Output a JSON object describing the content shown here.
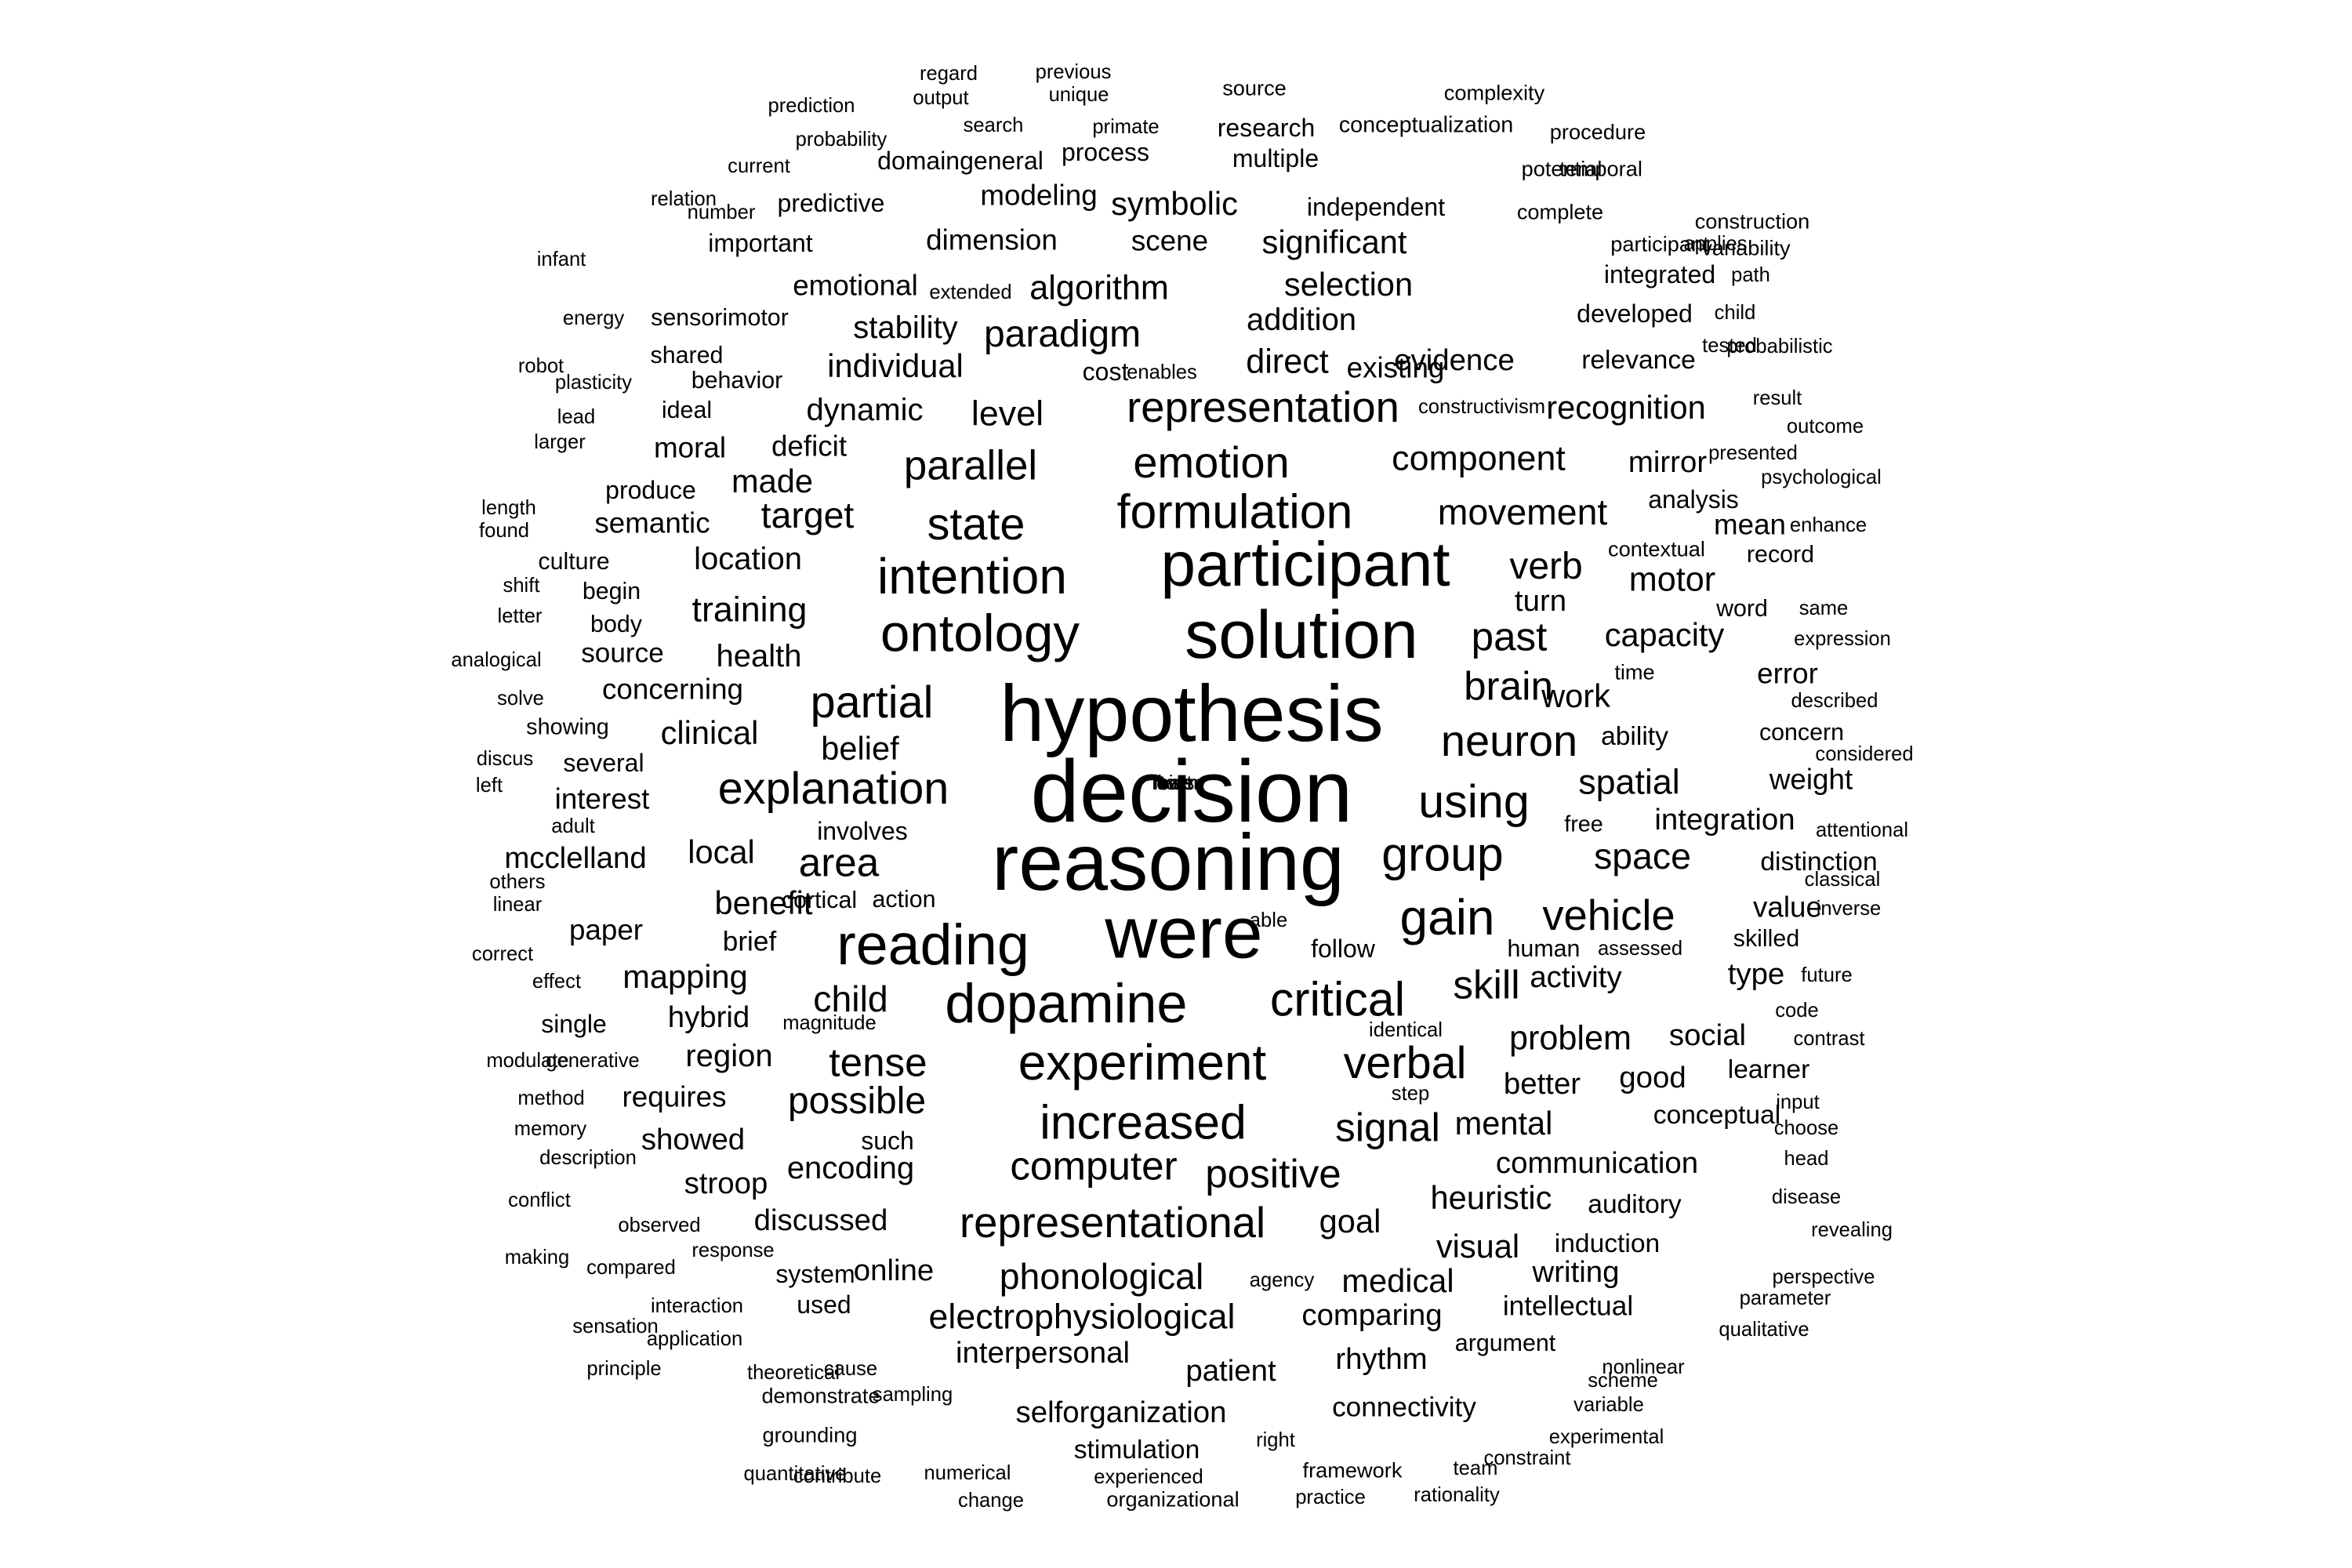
{
  "word_cloud": {
    "text_color": "#000000",
    "background": "#ffffff",
    "words": [
      {
        "text": "decision",
        "weight": 70
      },
      {
        "text": "hypothesis",
        "weight": 64
      },
      {
        "text": "reasoning",
        "weight": 64
      },
      {
        "text": "were",
        "weight": 58
      },
      {
        "text": "solution",
        "weight": 54
      },
      {
        "text": "participant",
        "weight": 50
      },
      {
        "text": "reading",
        "weight": 46
      },
      {
        "text": "dopamine",
        "weight": 44
      },
      {
        "text": "ontology",
        "weight": 42
      },
      {
        "text": "intention",
        "weight": 40
      },
      {
        "text": "experiment",
        "weight": 40
      },
      {
        "text": "gain",
        "weight": 40
      },
      {
        "text": "formulation",
        "weight": 38
      },
      {
        "text": "group",
        "weight": 38
      },
      {
        "text": "increased",
        "weight": 38
      },
      {
        "text": "critical",
        "weight": 38
      },
      {
        "text": "explanation",
        "weight": 36
      },
      {
        "text": "representational",
        "weight": 34
      },
      {
        "text": "emotion",
        "weight": 35
      },
      {
        "text": "partial",
        "weight": 36
      },
      {
        "text": "state",
        "weight": 36
      },
      {
        "text": "representation",
        "weight": 34
      },
      {
        "text": "verbal",
        "weight": 36
      },
      {
        "text": "using",
        "weight": 37
      },
      {
        "text": "neuron",
        "weight": 35
      },
      {
        "text": "vehicle",
        "weight": 34
      },
      {
        "text": "parallel",
        "weight": 33
      },
      {
        "text": "signal",
        "weight": 32
      },
      {
        "text": "computer",
        "weight": 32
      },
      {
        "text": "positive",
        "weight": 32
      },
      {
        "text": "skill",
        "weight": 32
      },
      {
        "text": "brain",
        "weight": 32
      },
      {
        "text": "past",
        "weight": 32
      },
      {
        "text": "area",
        "weight": 32
      },
      {
        "text": "tense",
        "weight": 32
      },
      {
        "text": "paradigm",
        "weight": 30
      },
      {
        "text": "possible",
        "weight": 30
      },
      {
        "text": "phonological",
        "weight": 29
      },
      {
        "text": "verb",
        "weight": 30
      },
      {
        "text": "movement",
        "weight": 29
      },
      {
        "text": "component",
        "weight": 28
      },
      {
        "text": "child",
        "weight": 29
      },
      {
        "text": "space",
        "weight": 29
      },
      {
        "text": "spatial",
        "weight": 28
      },
      {
        "text": "problem",
        "weight": 27
      },
      {
        "text": "target",
        "weight": 29
      },
      {
        "text": "algorithm",
        "weight": 27
      },
      {
        "text": "training",
        "weight": 28
      },
      {
        "text": "electrophysiological",
        "weight": 28
      },
      {
        "text": "recognition",
        "weight": 26
      },
      {
        "text": "mapping",
        "weight": 26
      },
      {
        "text": "level",
        "weight": 28
      },
      {
        "text": "capacity",
        "weight": 26
      },
      {
        "text": "motor",
        "weight": 27
      },
      {
        "text": "heuristic",
        "weight": 26
      },
      {
        "text": "mental",
        "weight": 26
      },
      {
        "text": "medical",
        "weight": 26
      },
      {
        "text": "visual",
        "weight": 26
      },
      {
        "text": "symbolic",
        "weight": 26
      },
      {
        "text": "significant",
        "weight": 26
      },
      {
        "text": "selection",
        "weight": 26
      },
      {
        "text": "direct",
        "weight": 27
      },
      {
        "text": "individual",
        "weight": 26
      },
      {
        "text": "stability",
        "weight": 25
      },
      {
        "text": "addition",
        "weight": 25
      },
      {
        "text": "work",
        "weight": 26
      },
      {
        "text": "belief",
        "weight": 26
      },
      {
        "text": "clinical",
        "weight": 26
      },
      {
        "text": "benefit",
        "weight": 26
      },
      {
        "text": "local",
        "weight": 26
      },
      {
        "text": "goal",
        "weight": 26
      },
      {
        "text": "region",
        "weight": 25
      },
      {
        "text": "encoding",
        "weight": 25
      },
      {
        "text": "dynamic",
        "weight": 25
      },
      {
        "text": "location",
        "weight": 25
      },
      {
        "text": "made",
        "weight": 26
      },
      {
        "text": "evidence",
        "weight": 24
      },
      {
        "text": "better",
        "weight": 24
      },
      {
        "text": "social",
        "weight": 24
      },
      {
        "text": "showed",
        "weight": 24
      },
      {
        "text": "health",
        "weight": 25
      },
      {
        "text": "interpersonal",
        "weight": 24
      },
      {
        "text": "comparing",
        "weight": 24
      },
      {
        "text": "communication",
        "weight": 24
      },
      {
        "text": "patient",
        "weight": 24
      },
      {
        "text": "rhythm",
        "weight": 24
      },
      {
        "text": "selforganization",
        "weight": 24
      },
      {
        "text": "discussed",
        "weight": 24
      },
      {
        "text": "online",
        "weight": 24
      },
      {
        "text": "stroop",
        "weight": 24
      },
      {
        "text": "hybrid",
        "weight": 24
      },
      {
        "text": "mcclelland",
        "weight": 24
      },
      {
        "text": "activity",
        "weight": 24
      },
      {
        "text": "good",
        "weight": 24
      },
      {
        "text": "mirror",
        "weight": 24
      },
      {
        "text": "integration",
        "weight": 24
      },
      {
        "text": "type",
        "weight": 24
      },
      {
        "text": "turn",
        "weight": 24
      },
      {
        "text": "writing",
        "weight": 24
      },
      {
        "text": "weight",
        "weight": 23
      },
      {
        "text": "value",
        "weight": 23
      },
      {
        "text": "mean",
        "weight": 23
      },
      {
        "text": "requires",
        "weight": 23
      },
      {
        "text": "interest",
        "weight": 23
      },
      {
        "text": "semantic",
        "weight": 23
      },
      {
        "text": "concerning",
        "weight": 23
      },
      {
        "text": "deficit",
        "weight": 23
      },
      {
        "text": "moral",
        "weight": 23
      },
      {
        "text": "dimension",
        "weight": 23
      },
      {
        "text": "emotional",
        "weight": 23
      },
      {
        "text": "modeling",
        "weight": 23
      },
      {
        "text": "scene",
        "weight": 23
      },
      {
        "text": "paper",
        "weight": 23
      },
      {
        "text": "existing",
        "weight": 23
      },
      {
        "text": "brief",
        "weight": 22
      },
      {
        "text": "source",
        "weight": 22
      },
      {
        "text": "auditory",
        "weight": 21
      },
      {
        "text": "connectivity",
        "weight": 22
      },
      {
        "text": "stimulation",
        "weight": 21
      },
      {
        "text": "intellectual",
        "weight": 22
      },
      {
        "text": "induction",
        "weight": 21
      },
      {
        "text": "learner",
        "weight": 21
      },
      {
        "text": "ability",
        "weight": 21
      },
      {
        "text": "error",
        "weight": 23
      },
      {
        "text": "distinction",
        "weight": 21
      },
      {
        "text": "conceptual",
        "weight": 21
      },
      {
        "text": "analysis",
        "weight": 20
      },
      {
        "text": "relevance",
        "weight": 21
      },
      {
        "text": "developed",
        "weight": 20
      },
      {
        "text": "integrated",
        "weight": 20
      },
      {
        "text": "domaingeneral",
        "weight": 20
      },
      {
        "text": "research",
        "weight": 20
      },
      {
        "text": "predictive",
        "weight": 20
      },
      {
        "text": "process",
        "weight": 20
      },
      {
        "text": "multiple",
        "weight": 20
      },
      {
        "text": "independent",
        "weight": 20
      },
      {
        "text": "important",
        "weight": 20
      },
      {
        "text": "several",
        "weight": 20
      },
      {
        "text": "produce",
        "weight": 20
      },
      {
        "text": "argument",
        "weight": 19
      },
      {
        "text": "used",
        "weight": 20
      },
      {
        "text": "system",
        "weight": 20
      },
      {
        "text": "single",
        "weight": 20
      },
      {
        "text": "such",
        "weight": 20
      },
      {
        "text": "follow",
        "weight": 20
      },
      {
        "text": "cost",
        "weight": 20
      },
      {
        "text": "involves",
        "weight": 20
      },
      {
        "text": "cortical",
        "weight": 19
      },
      {
        "text": "action",
        "weight": 19
      },
      {
        "text": "body",
        "weight": 19
      },
      {
        "text": "begin",
        "weight": 19
      },
      {
        "text": "ideal",
        "weight": 19
      },
      {
        "text": "behavior",
        "weight": 19
      },
      {
        "text": "shared",
        "weight": 19
      },
      {
        "text": "sensorimotor",
        "weight": 19
      },
      {
        "text": "showing",
        "weight": 18
      },
      {
        "text": "culture",
        "weight": 19
      },
      {
        "text": "word",
        "weight": 19
      },
      {
        "text": "record",
        "weight": 19
      },
      {
        "text": "skilled",
        "weight": 19
      },
      {
        "text": "concern",
        "weight": 19
      },
      {
        "text": "human",
        "weight": 19
      },
      {
        "text": "free",
        "weight": 18
      },
      {
        "text": "time",
        "weight": 17
      },
      {
        "text": "contextual",
        "weight": 17
      },
      {
        "text": "source2",
        "weight": 17
      },
      {
        "text": "conceptualization",
        "weight": 18
      },
      {
        "text": "complexity",
        "weight": 17
      },
      {
        "text": "procedure",
        "weight": 17
      },
      {
        "text": "temporal",
        "weight": 17
      },
      {
        "text": "potential",
        "weight": 17
      },
      {
        "text": "complete",
        "weight": 17
      },
      {
        "text": "construction",
        "weight": 17
      },
      {
        "text": "variability",
        "weight": 17
      },
      {
        "text": "participant2",
        "weight": 17
      },
      {
        "text": "applies",
        "weight": 16
      },
      {
        "text": "path",
        "weight": 16
      },
      {
        "text": "child2",
        "weight": 16
      },
      {
        "text": "tested",
        "weight": 16
      },
      {
        "text": "probabilistic",
        "weight": 16
      },
      {
        "text": "result",
        "weight": 16
      },
      {
        "text": "outcome",
        "weight": 16
      },
      {
        "text": "presented",
        "weight": 16
      },
      {
        "text": "psychological",
        "weight": 16
      },
      {
        "text": "enhance",
        "weight": 16
      },
      {
        "text": "same",
        "weight": 16
      },
      {
        "text": "expression",
        "weight": 16
      },
      {
        "text": "described",
        "weight": 16
      },
      {
        "text": "considered",
        "weight": 16
      },
      {
        "text": "attentional",
        "weight": 16
      },
      {
        "text": "classical",
        "weight": 16
      },
      {
        "text": "inverse",
        "weight": 16
      },
      {
        "text": "future",
        "weight": 16
      },
      {
        "text": "code",
        "weight": 16
      },
      {
        "text": "contrast",
        "weight": 16
      },
      {
        "text": "input",
        "weight": 16
      },
      {
        "text": "choose",
        "weight": 16
      },
      {
        "text": "head",
        "weight": 16
      },
      {
        "text": "disease",
        "weight": 16
      },
      {
        "text": "revealing",
        "weight": 16
      },
      {
        "text": "perspective",
        "weight": 16
      },
      {
        "text": "parameter",
        "weight": 16
      },
      {
        "text": "qualitative",
        "weight": 16
      },
      {
        "text": "nonlinear",
        "weight": 16
      },
      {
        "text": "scheme",
        "weight": 16
      },
      {
        "text": "experimental",
        "weight": 16
      },
      {
        "text": "variable",
        "weight": 16
      },
      {
        "text": "constraint",
        "weight": 16
      },
      {
        "text": "rationality",
        "weight": 16
      },
      {
        "text": "team",
        "weight": 16
      },
      {
        "text": "practice",
        "weight": 16
      },
      {
        "text": "framework",
        "weight": 17
      },
      {
        "text": "right",
        "weight": 16
      },
      {
        "text": "organizational",
        "weight": 17
      },
      {
        "text": "experienced",
        "weight": 16
      },
      {
        "text": "change",
        "weight": 16
      },
      {
        "text": "numerical",
        "weight": 16
      },
      {
        "text": "contribute",
        "weight": 16
      },
      {
        "text": "quantitative",
        "weight": 16
      },
      {
        "text": "grounding",
        "weight": 17
      },
      {
        "text": "sampling",
        "weight": 16
      },
      {
        "text": "demonstrate",
        "weight": 17
      },
      {
        "text": "theoretical",
        "weight": 16
      },
      {
        "text": "principle",
        "weight": 16
      },
      {
        "text": "cause",
        "weight": 16
      },
      {
        "text": "interaction",
        "weight": 16
      },
      {
        "text": "application",
        "weight": 16
      },
      {
        "text": "sensation",
        "weight": 16
      },
      {
        "text": "compared",
        "weight": 16
      },
      {
        "text": "response",
        "weight": 16
      },
      {
        "text": "observed",
        "weight": 16
      },
      {
        "text": "making",
        "weight": 16
      },
      {
        "text": "conflict",
        "weight": 16
      },
      {
        "text": "description",
        "weight": 16
      },
      {
        "text": "memory",
        "weight": 16
      },
      {
        "text": "method",
        "weight": 16
      },
      {
        "text": "modulate",
        "weight": 16
      },
      {
        "text": "generative",
        "weight": 16
      },
      {
        "text": "magnitude",
        "weight": 16
      },
      {
        "text": "identical",
        "weight": 16
      },
      {
        "text": "step",
        "weight": 16
      },
      {
        "text": "agency",
        "weight": 16
      },
      {
        "text": "effect",
        "weight": 16
      },
      {
        "text": "correct",
        "weight": 16
      },
      {
        "text": "assessed",
        "weight": 16
      },
      {
        "text": "able",
        "weight": 16
      },
      {
        "text": "linear",
        "weight": 16
      },
      {
        "text": "others",
        "weight": 16
      },
      {
        "text": "adult",
        "weight": 16
      },
      {
        "text": "left",
        "weight": 16
      },
      {
        "text": "discus",
        "weight": 16
      },
      {
        "text": "solve",
        "weight": 16
      },
      {
        "text": "analogical",
        "weight": 16
      },
      {
        "text": "letter",
        "weight": 16
      },
      {
        "text": "shift",
        "weight": 16
      },
      {
        "text": "found",
        "weight": 16
      },
      {
        "text": "length",
        "weight": 16
      },
      {
        "text": "larger",
        "weight": 16
      },
      {
        "text": "lead",
        "weight": 16
      },
      {
        "text": "plasticity",
        "weight": 16
      },
      {
        "text": "robot",
        "weight": 16
      },
      {
        "text": "energy",
        "weight": 16
      },
      {
        "text": "infant",
        "weight": 16
      },
      {
        "text": "number",
        "weight": 16
      },
      {
        "text": "relation",
        "weight": 16
      },
      {
        "text": "current",
        "weight": 16
      },
      {
        "text": "probability",
        "weight": 16
      },
      {
        "text": "prediction",
        "weight": 16
      },
      {
        "text": "regard",
        "weight": 16
      },
      {
        "text": "output",
        "weight": 16
      },
      {
        "text": "previous",
        "weight": 16
      },
      {
        "text": "unique",
        "weight": 16
      },
      {
        "text": "search",
        "weight": 16
      },
      {
        "text": "primate",
        "weight": 16
      },
      {
        "text": "extended",
        "weight": 16
      },
      {
        "text": "enables",
        "weight": 16
      },
      {
        "text": "constructivism",
        "weight": 16
      },
      {
        "text": "lower",
        "weight": 16
      },
      {
        "text": "bias",
        "weight": 16
      },
      {
        "text": "learn",
        "weight": 16
      },
      {
        "text": "test",
        "weight": 16
      }
    ]
  }
}
